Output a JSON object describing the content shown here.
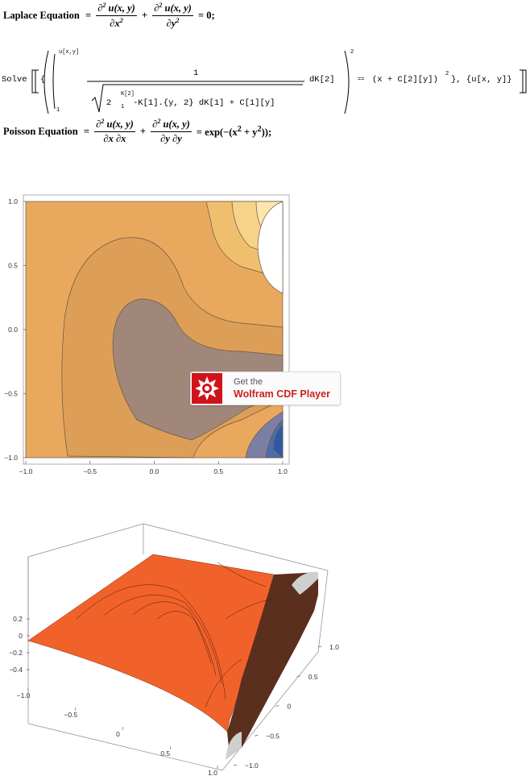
{
  "laplace": {
    "label": "Laplace Equation",
    "eq": "=",
    "d2u": "∂",
    "sq": "2",
    "u_xy": "u(x, y)",
    "dx2": "∂x",
    "dy2": "∂y",
    "plus": "+",
    "rhs": "= 0;"
  },
  "solve": {
    "cmd": "Solve",
    "open": "[",
    "brace_open": "{",
    "upper": "u[x,y]",
    "lower": "1",
    "numerator": "1",
    "inner_sqrt": "2",
    "inner_upper": "K[2]",
    "inner_lower": "1",
    "inner_body": "-K[1].{y, 2} dK[1] + C[1][y]",
    "dk2": "dK[2]",
    "power": "2",
    "equals": "==",
    "rhs": "(x + C[2][y])",
    "rhs_power": "2",
    "tail": "}, {u[x, y]}",
    "close": "]"
  },
  "poisson": {
    "label": "Poisson Equation",
    "eq": "=",
    "d2": "∂",
    "sq": "2",
    "u_xy": "u(x, y)",
    "dxdx": "∂x ∂x",
    "dydy": "∂y ∂y",
    "plus": "+",
    "rhs_pre": "= exp(−(x",
    "rhs_mid": " + y",
    "rhs_post": "));"
  },
  "contour": {
    "x_ticks": [
      "−1.0",
      "−0.5",
      "0.0",
      "0.5",
      "1.0"
    ],
    "y_ticks": [
      "1.0",
      "0.5",
      "0.0",
      "−0.5",
      "−1.0"
    ],
    "x_range": [
      -1,
      1
    ],
    "y_range": [
      -1,
      1
    ],
    "colors": {
      "base": "#e8a95f",
      "light1": "#f0bf6e",
      "light2": "#f7d38a",
      "light3": "#fde6ac",
      "center": "#a1877a",
      "blue1": "#7d7ea3",
      "blue2": "#4c6ea7",
      "blue3": "#2f59a5",
      "white": "#ffffff"
    }
  },
  "cdf_badge": {
    "line1": "Get the",
    "line2": "Wolfram CDF Player"
  },
  "surface": {
    "z_ticks": [
      "0.2",
      "0",
      "−0.2",
      "−0.4"
    ],
    "x_ticks": [
      "−1.0",
      "−0.5",
      "0",
      "0.5",
      "1.0"
    ],
    "y_ticks": [
      "1.0",
      "0.5",
      "0",
      "−0.5",
      "−1.0"
    ],
    "colors": {
      "surface": "#f1622a",
      "surface_dark": "#d84f1f",
      "wall": "#5a2f1d",
      "cap": "#cfcfcf"
    }
  }
}
